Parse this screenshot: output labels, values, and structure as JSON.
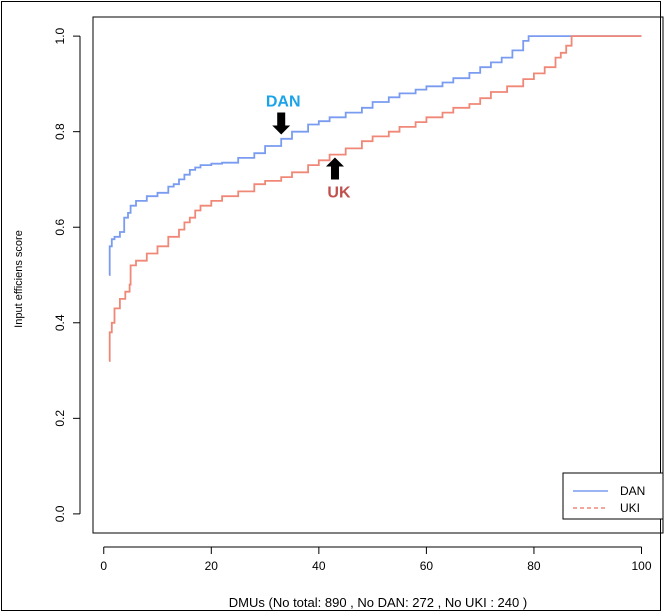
{
  "chart_data": {
    "type": "line",
    "title": "",
    "xlabel": "DMUs  (No total: 890 , No DAN: 272 , No  UKI  : 240 )",
    "ylabel": "Input efficiens score",
    "xlim": [
      -2,
      104
    ],
    "ylim": [
      -0.04,
      1.04
    ],
    "xticks": [
      0,
      20,
      40,
      60,
      80,
      100
    ],
    "yticks": [
      0.0,
      0.2,
      0.4,
      0.6,
      0.8,
      1.0
    ],
    "xtick_labels": [
      "0",
      "20",
      "40",
      "60",
      "80",
      "100"
    ],
    "ytick_labels": [
      "0.0",
      "0.2",
      "0.4",
      "0.6",
      "0.8",
      "1.0"
    ],
    "grid": false,
    "legend_position": "bottom-right",
    "series": [
      {
        "name": "DAN",
        "color": "#7a9cf0",
        "dash": "solid",
        "x": [
          1,
          1.1,
          1.5,
          2,
          3,
          3.8,
          4.5,
          5,
          6,
          8,
          10,
          12,
          13,
          14,
          15,
          16,
          17,
          18,
          20,
          22,
          25,
          28,
          30,
          33,
          35,
          38,
          40,
          42,
          45,
          48,
          50,
          53,
          55,
          58,
          60,
          63,
          65,
          68,
          70,
          72,
          74,
          76,
          78,
          79,
          85,
          100
        ],
        "y": [
          0.5,
          0.56,
          0.575,
          0.58,
          0.59,
          0.62,
          0.63,
          0.645,
          0.655,
          0.665,
          0.672,
          0.685,
          0.69,
          0.7,
          0.71,
          0.72,
          0.725,
          0.73,
          0.733,
          0.735,
          0.745,
          0.755,
          0.77,
          0.785,
          0.8,
          0.815,
          0.822,
          0.83,
          0.84,
          0.85,
          0.862,
          0.872,
          0.88,
          0.888,
          0.895,
          0.903,
          0.912,
          0.923,
          0.935,
          0.945,
          0.955,
          0.97,
          0.99,
          1.0,
          1.0,
          1.0
        ]
      },
      {
        "name": "UKI",
        "color": "#f08878",
        "dash": "dotted",
        "x": [
          1,
          1.1,
          1.5,
          2,
          3,
          4,
          4.8,
          5,
          6,
          8,
          10,
          12,
          14,
          15,
          16,
          17,
          18,
          20,
          22,
          25,
          28,
          30,
          33,
          35,
          38,
          40,
          42,
          45,
          48,
          50,
          53,
          55,
          58,
          60,
          63,
          65,
          68,
          70,
          72,
          75,
          78,
          80,
          82,
          84,
          85,
          86,
          87,
          100
        ],
        "y": [
          0.32,
          0.38,
          0.4,
          0.43,
          0.45,
          0.465,
          0.48,
          0.52,
          0.53,
          0.545,
          0.56,
          0.58,
          0.595,
          0.61,
          0.62,
          0.635,
          0.645,
          0.655,
          0.665,
          0.675,
          0.69,
          0.697,
          0.705,
          0.715,
          0.73,
          0.74,
          0.752,
          0.765,
          0.78,
          0.79,
          0.8,
          0.81,
          0.82,
          0.83,
          0.84,
          0.85,
          0.858,
          0.87,
          0.883,
          0.895,
          0.91,
          0.922,
          0.935,
          0.955,
          0.965,
          0.98,
          1.0,
          1.0
        ]
      }
    ],
    "annotations": [
      {
        "text": "DAN",
        "color": "#1aa3e8",
        "x": 33,
        "y": 0.79,
        "arrow": "down"
      },
      {
        "text": "UK",
        "color": "#c0504d",
        "x": 43,
        "y": 0.75,
        "arrow": "up"
      }
    ]
  }
}
